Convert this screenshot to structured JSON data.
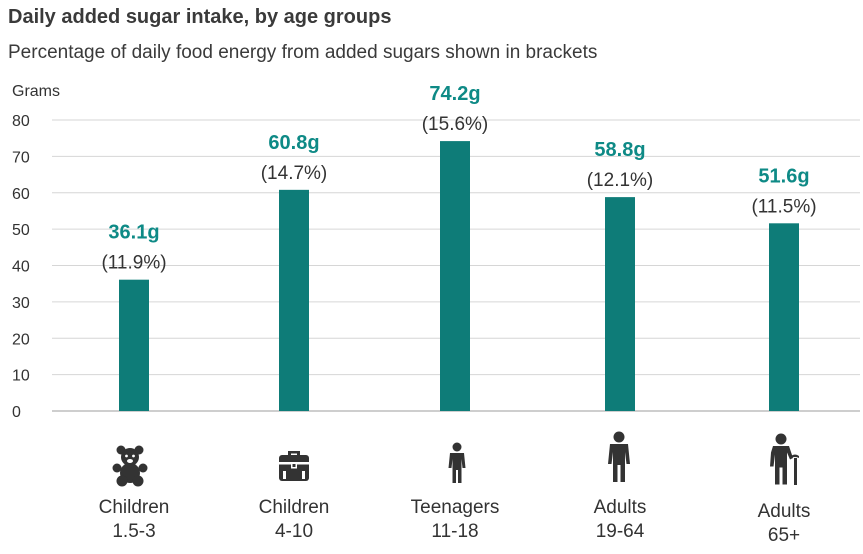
{
  "colors": {
    "bar": "#0e7c78",
    "value_label": "#0e8a86"
  },
  "chart_data": {
    "type": "bar",
    "title": "Daily added sugar intake, by age groups",
    "subtitle": "Percentage of daily food energy from added sugars shown in brackets",
    "ylabel": "Grams",
    "xlabel": "",
    "ylim": [
      0,
      80
    ],
    "yticks": [
      0,
      10,
      20,
      30,
      40,
      50,
      60,
      70,
      80
    ],
    "grid": true,
    "categories": [
      {
        "line1": "Children",
        "line2": "1.5-3",
        "icon": "teddy-bear-icon"
      },
      {
        "line1": "Children",
        "line2": "4-10",
        "icon": "school-bag-icon"
      },
      {
        "line1": "Teenagers",
        "line2": "11-18",
        "icon": "teenager-icon"
      },
      {
        "line1": "Adults",
        "line2": "19-64",
        "icon": "adult-icon"
      },
      {
        "line1": "Adults",
        "line2": "65+",
        "icon": "elderly-with-cane-icon"
      }
    ],
    "values": [
      36.1,
      60.8,
      74.2,
      58.8,
      51.6
    ],
    "value_labels": [
      "36.1g",
      "60.8g",
      "74.2g",
      "58.8g",
      "51.6g"
    ],
    "percent_labels": [
      "(11.9%)",
      "(14.7%)",
      "(15.6%)",
      "(12.1%)",
      "(11.5%)"
    ]
  }
}
